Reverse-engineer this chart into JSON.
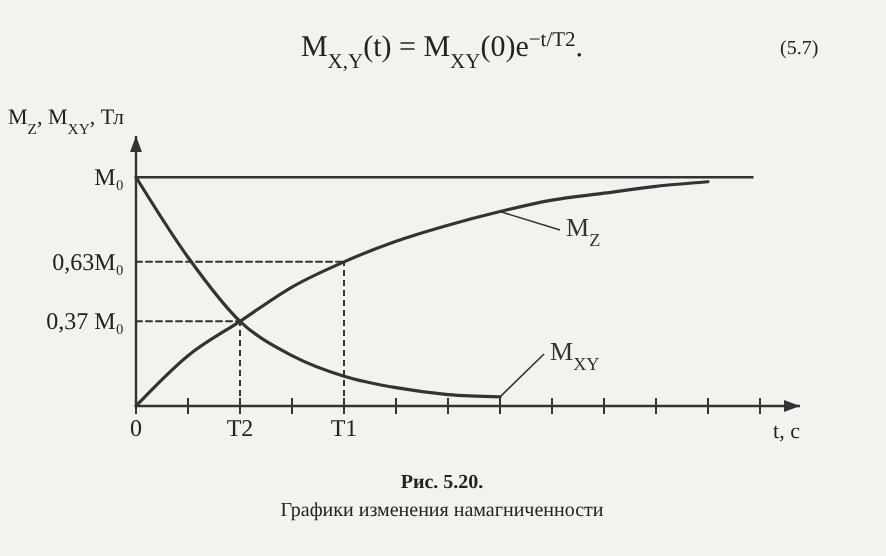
{
  "chart_data": {
    "type": "line",
    "ylabel": "M$_{Z}$, M$_{XY}$, Тл",
    "xlabel": "t, с",
    "categories": [
      "0",
      null,
      "T2",
      null,
      "T1",
      null,
      null,
      null,
      null,
      null,
      null,
      null,
      null
    ],
    "ylim": [
      0,
      1.18
    ],
    "yticks": [
      {
        "value": 0.37,
        "label": "0,37 M₀"
      },
      {
        "value": 0.63,
        "label": "0,63M₀"
      },
      {
        "value": 1,
        "label": "M₀"
      }
    ],
    "ref_lines": [
      {
        "axis": "y",
        "value": 1,
        "color": "#333333",
        "line_style": "solid"
      },
      {
        "axis": "x",
        "value": "T2",
        "color": "#333333",
        "line_style": "dashed"
      },
      {
        "axis": "x",
        "value": "T1",
        "color": "#333333",
        "line_style": "dashed"
      }
    ],
    "grid": false,
    "marker": "none",
    "line_style": "solid",
    "series": [
      {
        "name": "M$_{Z}$",
        "color": "#333333",
        "values": [
          0,
          0.22,
          0.37,
          0.52,
          0.63,
          0.72,
          0.79,
          0.85,
          0.9,
          0.93,
          0.96,
          0.98,
          null
        ]
      },
      {
        "name": "M$_{XY}$",
        "color": "#333333",
        "values": [
          1,
          0.65,
          0.37,
          0.22,
          0.13,
          0.08,
          0.05,
          0.04,
          null,
          null,
          null,
          null,
          null
        ]
      },
      {
        "color": "#333333",
        "line_style": "dashed",
        "values": [
          0.63,
          0.63,
          0.63,
          0.63,
          0.63,
          null,
          null,
          null,
          null,
          null,
          null,
          null,
          null
        ]
      },
      {
        "color": "#333333",
        "line_style": "dashed",
        "values": [
          0.37,
          0.37,
          0.37,
          null,
          null,
          null,
          null,
          null,
          null,
          null,
          null,
          null,
          null
        ]
      }
    ],
    "annotations": [
      "M$_{X,Y}$(t) = M$_{XY}$(0)e$^{−t/T2}$.",
      "(5.7)",
      "Рис. 5.20.",
      "Графики изменения намагниченности"
    ]
  }
}
